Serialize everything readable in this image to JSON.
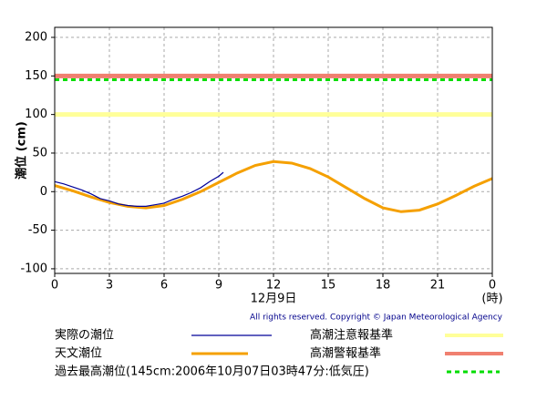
{
  "chart_data": {
    "type": "line",
    "ylabel": "潮位 (cm)",
    "xlabel": "12月9日",
    "xunit": "(時)",
    "copyright": "All rights reserved. Copyright © Japan Meteorological Agency",
    "xlim": [
      0,
      24
    ],
    "xticks": [
      0,
      3,
      6,
      9,
      12,
      15,
      18,
      21,
      {
        "value": 24,
        "label": "0"
      }
    ],
    "ylim": [
      -106,
      213
    ],
    "yticks": [
      -100,
      -50,
      0,
      50,
      100,
      150,
      200
    ],
    "grid": true,
    "series": [
      {
        "name": "実際の潮位",
        "color": "#000099",
        "x": [
          0,
          0.5,
          1,
          1.5,
          2,
          2.5,
          3,
          3.5,
          4,
          4.5,
          5,
          5.5,
          6,
          6.5,
          7,
          7.5,
          8,
          8.5,
          9,
          9.25
        ],
        "values": [
          13,
          10,
          6,
          2,
          -3,
          -9,
          -12,
          -16,
          -18,
          -19,
          -19,
          -17,
          -15,
          -10,
          -6,
          -1,
          5,
          13,
          20,
          25
        ]
      },
      {
        "name": "天文潮位",
        "color": "#f5a000",
        "x": [
          0,
          1,
          2,
          3,
          4,
          5,
          6,
          7,
          8,
          9,
          10,
          11,
          12,
          13,
          14,
          15,
          16,
          17,
          18,
          19,
          20,
          21,
          22,
          23,
          24
        ],
        "values": [
          8,
          1,
          -7,
          -14,
          -19,
          -21,
          -18,
          -10,
          0,
          12,
          24,
          34,
          39,
          37,
          30,
          19,
          5,
          -9,
          -21,
          -26,
          -24,
          -16,
          -5,
          7,
          17
        ]
      }
    ],
    "reference_lines": [
      {
        "name": "高潮注意報基準",
        "color": "#ffff99",
        "value": 100,
        "style": "solid"
      },
      {
        "name": "高潮警報基準",
        "color": "#f08070",
        "value": 150,
        "style": "solid"
      },
      {
        "name": "過去最高潮位(145cm:2006年10月07日03時47分:低気圧)",
        "color": "#00dd00",
        "value": 145,
        "style": "dashed"
      }
    ]
  }
}
